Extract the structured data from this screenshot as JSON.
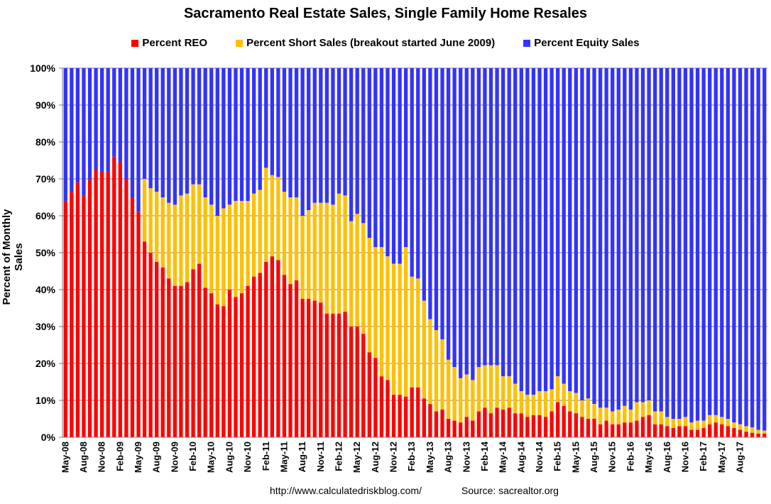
{
  "colors": {
    "reo": "#ff0000",
    "short_sales": "#ffc000",
    "equity": "#3333ff"
  },
  "footer": {
    "url": "http://www.calculatedriskblog.com/",
    "source": "Source: sacrealtor.org"
  },
  "chart_data": {
    "type": "bar",
    "stacked": true,
    "title": "Sacramento Real Estate Sales, Single Family Home Resales",
    "ylabel": "Percent of Monthly Sales",
    "xlabel": "",
    "ylim": [
      0,
      100
    ],
    "y_ticks": [
      "0%",
      "10%",
      "20%",
      "30%",
      "40%",
      "50%",
      "60%",
      "70%",
      "80%",
      "90%",
      "100%"
    ],
    "x_tick_labels": [
      "May-08",
      "Aug-08",
      "Nov-08",
      "Feb-09",
      "May-09",
      "Aug-09",
      "Nov-09",
      "Feb-10",
      "May-10",
      "Aug-10",
      "Nov-10",
      "Feb-11",
      "May-11",
      "Aug-11",
      "Nov-11",
      "Feb-12",
      "May-12",
      "Aug-12",
      "Nov-12",
      "Feb-13",
      "May-13",
      "Aug-13",
      "Nov-13",
      "Feb-14",
      "May-14",
      "Aug-14",
      "Nov-14",
      "Feb-15",
      "May-15",
      "Aug-15",
      "Nov-15",
      "Feb-16",
      "May-16",
      "Aug-16",
      "Nov-16",
      "Feb-17",
      "May-17",
      "Aug-17"
    ],
    "start_month": "May-08",
    "end_month": "Sep-17",
    "legend_position": "top",
    "grid": true,
    "series": [
      {
        "name": "Percent REO",
        "values": [
          64,
          66.5,
          69,
          65.5,
          70,
          72.5,
          72,
          72,
          76,
          74.5,
          70,
          65,
          61,
          53,
          50,
          47.5,
          46,
          43,
          41,
          41,
          42,
          45.5,
          47,
          40.5,
          39,
          36,
          35.5,
          40,
          38,
          39,
          41,
          43.5,
          44.5,
          47.5,
          49,
          48,
          44,
          41.5,
          42.5,
          37.5,
          37.5,
          37,
          36.5,
          33.5,
          33.5,
          33.5,
          34,
          30,
          30,
          28,
          23,
          21.5,
          16.5,
          15.5,
          11.5,
          11.5,
          11,
          13.5,
          13.5,
          10.5,
          9,
          7,
          7.5,
          5,
          4.5,
          4,
          5.5,
          4.5,
          7,
          8,
          6.5,
          8,
          7.5,
          8,
          6.5,
          6.5,
          5.5,
          6,
          6,
          5.5,
          7,
          9.5,
          8.5,
          7,
          6.5,
          5.5,
          5,
          5,
          3.5,
          4.5,
          3.5,
          3.5,
          4,
          4,
          4.5,
          5.5,
          6,
          3.5,
          3.5,
          3,
          2.5,
          3,
          3,
          2,
          2,
          2.5,
          3.5,
          4,
          3.5,
          3,
          2.5,
          2,
          1.5,
          1.2,
          1,
          1
        ]
      },
      {
        "name": "Percent Short Sales (breakout started June 2009)",
        "values": [
          0,
          0,
          0,
          0,
          0,
          0,
          0,
          0,
          0,
          0,
          0,
          0,
          0,
          17,
          17.5,
          19,
          19,
          20.5,
          22,
          24.5,
          24,
          23,
          21.5,
          24.5,
          24,
          24,
          26.5,
          23,
          26,
          25,
          23,
          22.5,
          22.5,
          25.5,
          22,
          22.5,
          22.5,
          23.5,
          22.5,
          22.5,
          24,
          26.5,
          27,
          30,
          29.5,
          32.5,
          31.5,
          28.5,
          30.5,
          30,
          31,
          30,
          35,
          33.5,
          35.5,
          35.5,
          40.5,
          30,
          29.5,
          26.5,
          23,
          22,
          19,
          16,
          14.5,
          12,
          11.5,
          11,
          12,
          11.5,
          13,
          11.5,
          9,
          8.5,
          8,
          6,
          6,
          5.5,
          6.5,
          7,
          6,
          7,
          6,
          5.5,
          5.5,
          4.5,
          5.5,
          4,
          4.5,
          3.5,
          3.5,
          4,
          4.5,
          3.5,
          5,
          4,
          4,
          3.5,
          3.5,
          2.5,
          2.5,
          2,
          2.5,
          2,
          2.5,
          2,
          2.5,
          2,
          2,
          2,
          1.5,
          1.5,
          1.5,
          1.5,
          1,
          0.8,
          0.6
        ]
      }
    ],
    "remainder_series": "Percent Equity Sales"
  }
}
